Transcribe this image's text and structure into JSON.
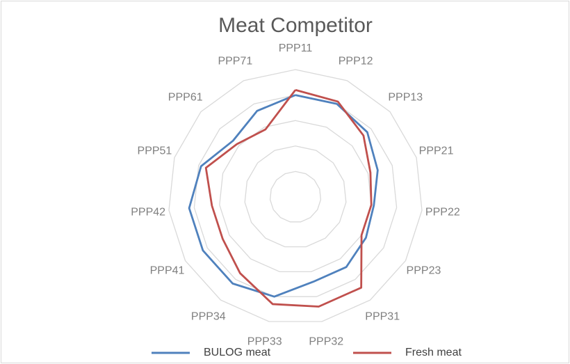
{
  "chart_data": {
    "type": "radar",
    "title": "Meat Competitor",
    "categories": [
      "PPP11",
      "PPP12",
      "PPP13",
      "PPP21",
      "PPP22",
      "PPP23",
      "PPP31",
      "PPP32",
      "PPP33",
      "PPP34",
      "PPP41",
      "PPP42",
      "PPP51",
      "PPP61",
      "PPP71"
    ],
    "series": [
      {
        "name": "BULOG meat",
        "color": "#4f81bd",
        "values": [
          4.0,
          4.0,
          3.8,
          3.4,
          3.1,
          3.2,
          3.4,
          3.4,
          4.0,
          4.2,
          4.2,
          4.2,
          3.9,
          3.3,
          3.7
        ]
      },
      {
        "name": "Fresh meat",
        "color": "#c0504d",
        "values": [
          4.2,
          4.1,
          3.6,
          3.1,
          3.0,
          3.0,
          4.4,
          4.4,
          4.3,
          3.7,
          3.3,
          3.3,
          3.7,
          3.1,
          2.9
        ]
      }
    ],
    "ylim": [
      0,
      5
    ],
    "yticks": [
      0,
      1,
      2,
      3,
      4,
      5
    ],
    "grid": true,
    "legend": "bottom"
  }
}
